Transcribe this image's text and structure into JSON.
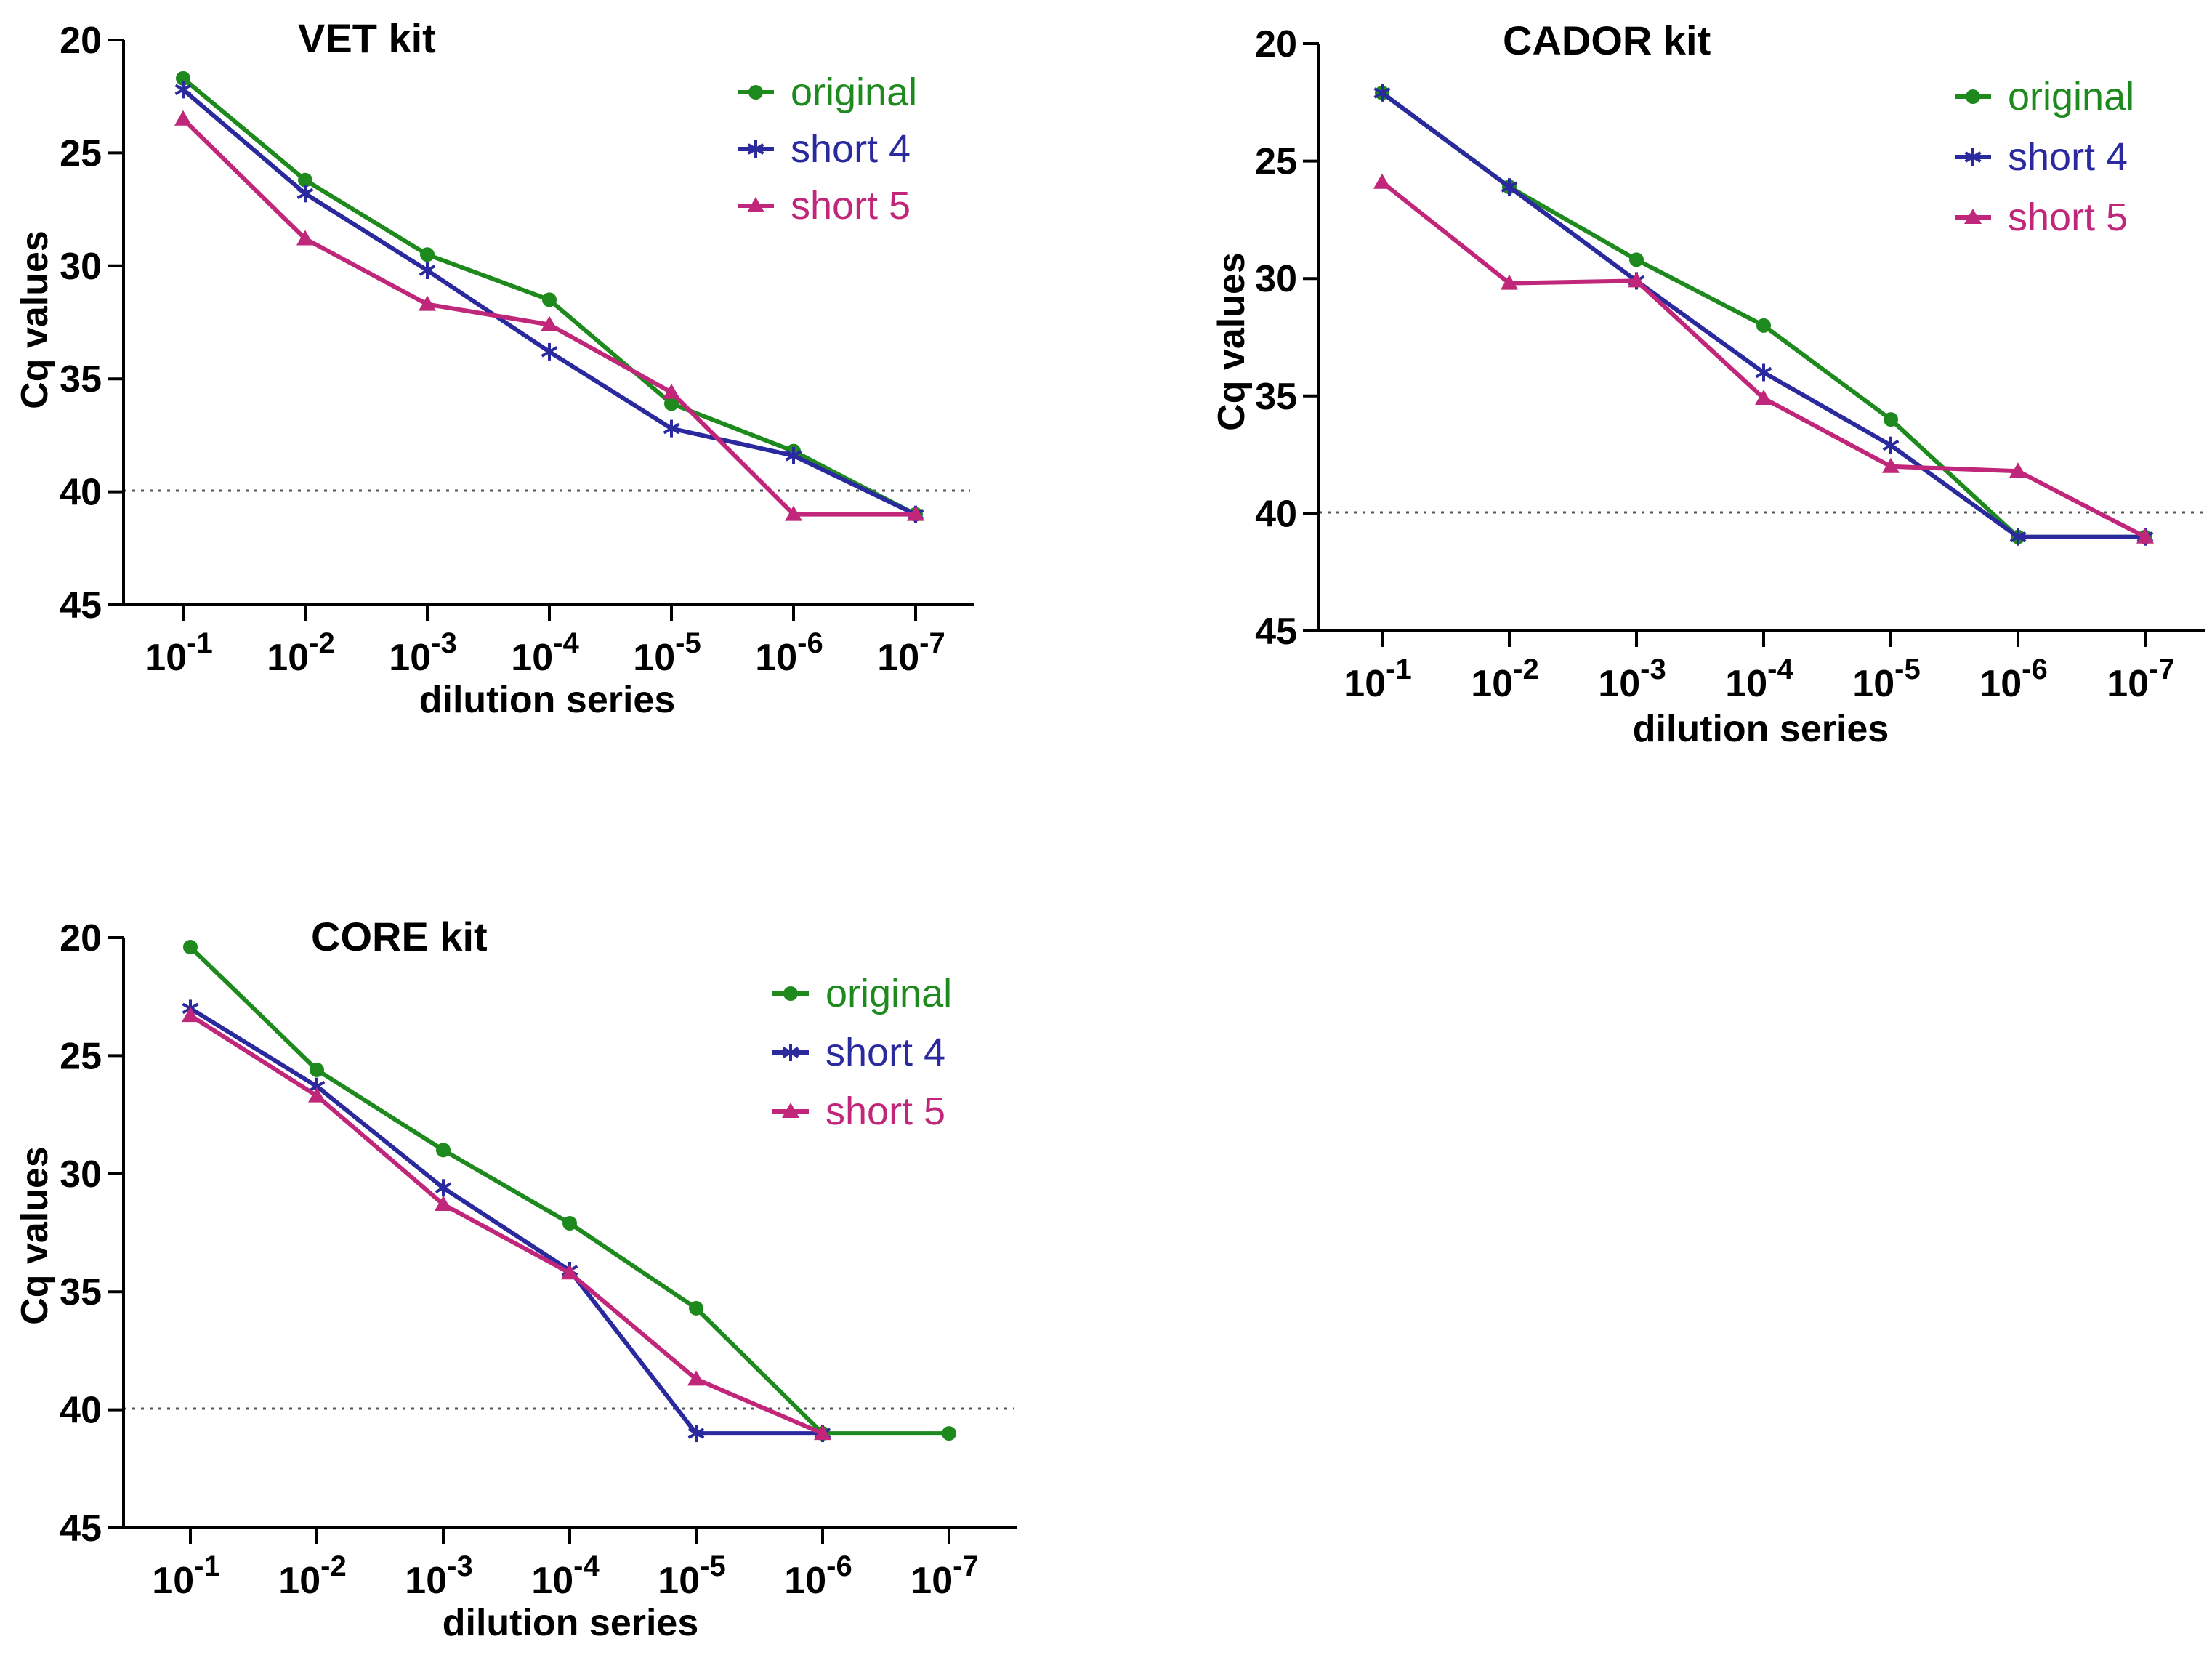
{
  "chart_data": [
    {
      "type": "line",
      "title": "VET kit",
      "xlabel": "dilution series",
      "ylabel": "Cq values",
      "categories": [
        "10-1",
        "10-2",
        "10-3",
        "10-4",
        "10-5",
        "10-6",
        "10-7"
      ],
      "x_ticks": [
        {
          "base": "10",
          "exp": "-1"
        },
        {
          "base": "10",
          "exp": "-2"
        },
        {
          "base": "10",
          "exp": "-3"
        },
        {
          "base": "10",
          "exp": "-4"
        },
        {
          "base": "10",
          "exp": "-5"
        },
        {
          "base": "10",
          "exp": "-6"
        },
        {
          "base": "10",
          "exp": "-7"
        }
      ],
      "y_ticks": [
        "20",
        "25",
        "30",
        "35",
        "40",
        "45"
      ],
      "ylim": [
        20,
        45
      ],
      "y_inverted": true,
      "threshold": 40,
      "legend_position": "top-right",
      "series": [
        {
          "name": "original",
          "color": "#1e8a1e",
          "marker": "circle",
          "values": [
            21.7,
            26.2,
            29.5,
            31.5,
            36.1,
            38.2,
            41.0
          ]
        },
        {
          "name": "short 4",
          "color": "#2a2a9e",
          "marker": "star",
          "values": [
            22.2,
            26.8,
            30.2,
            33.8,
            37.2,
            38.4,
            41.0
          ]
        },
        {
          "name": "short 5",
          "color": "#c0267a",
          "marker": "triangle",
          "values": [
            23.5,
            28.8,
            31.7,
            32.6,
            35.6,
            41.0,
            41.0
          ]
        }
      ]
    },
    {
      "type": "line",
      "title": "CADOR kit",
      "xlabel": "dilution series",
      "ylabel": "Cq values",
      "categories": [
        "10-1",
        "10-2",
        "10-3",
        "10-4",
        "10-5",
        "10-6",
        "10-7"
      ],
      "x_ticks": [
        {
          "base": "10",
          "exp": "-1"
        },
        {
          "base": "10",
          "exp": "-2"
        },
        {
          "base": "10",
          "exp": "-3"
        },
        {
          "base": "10",
          "exp": "-4"
        },
        {
          "base": "10",
          "exp": "-5"
        },
        {
          "base": "10",
          "exp": "-6"
        },
        {
          "base": "10",
          "exp": "-7"
        }
      ],
      "y_ticks": [
        "20",
        "25",
        "30",
        "35",
        "40",
        "45"
      ],
      "ylim": [
        20,
        45
      ],
      "y_inverted": true,
      "threshold": 40,
      "legend_position": "top-right",
      "series": [
        {
          "name": "original",
          "color": "#1e8a1e",
          "marker": "circle",
          "values": [
            22.1,
            26.1,
            29.2,
            32.0,
            36.0,
            41.0,
            41.0
          ]
        },
        {
          "name": "short 4",
          "color": "#2a2a9e",
          "marker": "star",
          "values": [
            22.1,
            26.1,
            30.1,
            34.0,
            37.1,
            41.0,
            41.0
          ]
        },
        {
          "name": "short 5",
          "color": "#c0267a",
          "marker": "triangle",
          "values": [
            25.9,
            30.2,
            30.1,
            35.1,
            38.0,
            38.2,
            41.0
          ]
        }
      ]
    },
    {
      "type": "line",
      "title": "CORE kit",
      "xlabel": "dilution series",
      "ylabel": "Cq values",
      "categories": [
        "10-1",
        "10-2",
        "10-3",
        "10-4",
        "10-5",
        "10-6",
        "10-7"
      ],
      "x_ticks": [
        {
          "base": "10",
          "exp": "-1"
        },
        {
          "base": "10",
          "exp": "-2"
        },
        {
          "base": "10",
          "exp": "-3"
        },
        {
          "base": "10",
          "exp": "-4"
        },
        {
          "base": "10",
          "exp": "-5"
        },
        {
          "base": "10",
          "exp": "-6"
        },
        {
          "base": "10",
          "exp": "-7"
        }
      ],
      "y_ticks": [
        "20",
        "25",
        "30",
        "35",
        "40",
        "45"
      ],
      "ylim": [
        20,
        45
      ],
      "y_inverted": true,
      "threshold": 40,
      "legend_position": "top-right",
      "series": [
        {
          "name": "original",
          "color": "#1e8a1e",
          "marker": "circle",
          "values": [
            20.4,
            25.6,
            29.0,
            32.1,
            35.7,
            41.0,
            41.0
          ]
        },
        {
          "name": "short 4",
          "color": "#2a2a9e",
          "marker": "star",
          "values": [
            23.0,
            26.3,
            30.6,
            34.1,
            41.0,
            41.0,
            null
          ]
        },
        {
          "name": "short 5",
          "color": "#c0267a",
          "marker": "triangle",
          "values": [
            23.3,
            26.7,
            31.3,
            34.2,
            38.7,
            41.0,
            null
          ]
        }
      ]
    }
  ]
}
